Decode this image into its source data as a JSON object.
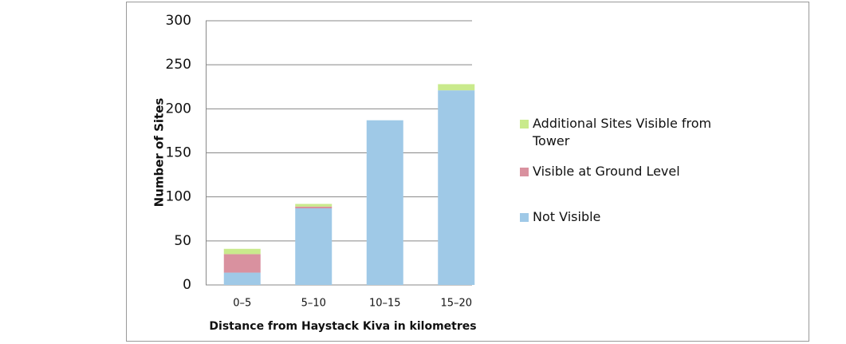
{
  "chart_data": {
    "type": "stacked_bar",
    "x_label": "Distance from Haystack Kiva in kilometres",
    "y_label": "Number of Sites",
    "categories": [
      "0–5",
      "5–10",
      "10–15",
      "15–20"
    ],
    "series": [
      {
        "name": "Not Visible",
        "color": "#9fc9e7",
        "values": [
          14,
          87,
          187,
          221
        ]
      },
      {
        "name": "Visible at Ground Level",
        "color": "#d9919f",
        "values": [
          21,
          2,
          0,
          0
        ]
      },
      {
        "name": "Additional Sites Visible from Tower",
        "color": "#c9ea8c",
        "values": [
          6,
          3,
          0,
          7
        ]
      }
    ],
    "ylim": [
      0,
      300
    ],
    "yticks": [
      0,
      50,
      100,
      150,
      200,
      250,
      300
    ],
    "grid": true,
    "legend": "right"
  }
}
